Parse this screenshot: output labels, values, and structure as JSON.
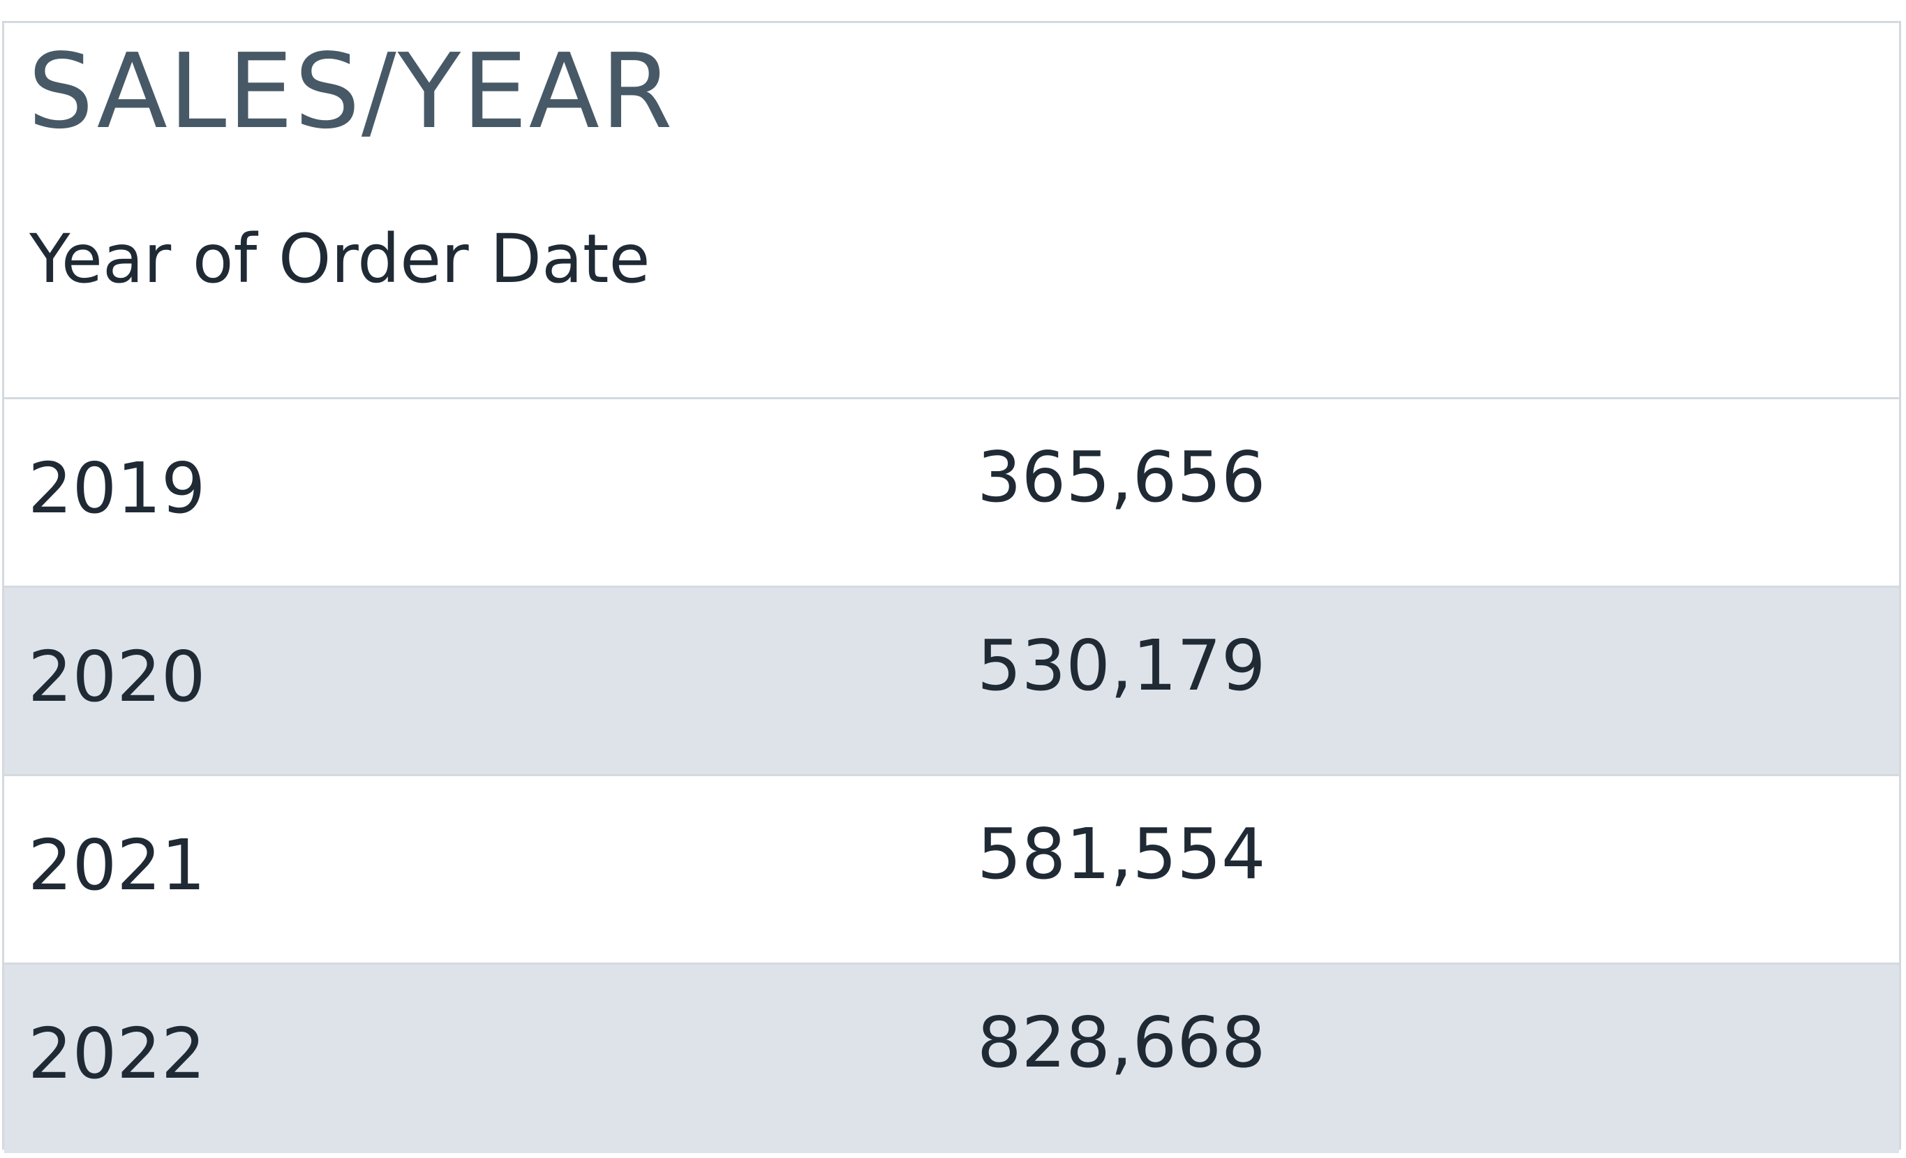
{
  "chart_data": {
    "type": "table",
    "title": "SALES/YEAR",
    "columns": [
      "Year of Order Date",
      ""
    ],
    "categories": [
      "2019",
      "2020",
      "2021",
      "2022"
    ],
    "values": [
      365656,
      530179,
      581554,
      828668
    ],
    "rows": [
      {
        "year": "2019",
        "value": "365,656"
      },
      {
        "year": "2020",
        "value": "530,179"
      },
      {
        "year": "2021",
        "value": "581,554"
      },
      {
        "year": "2022",
        "value": "828,668"
      }
    ]
  }
}
